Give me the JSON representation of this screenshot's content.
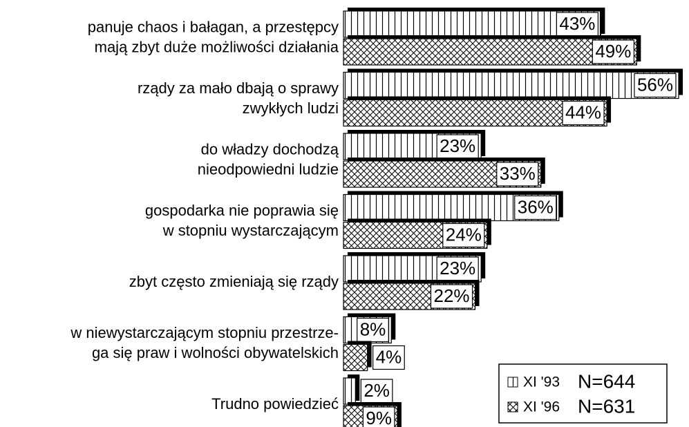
{
  "chart_data": {
    "type": "barh",
    "categories": [
      [
        "panuje chaos i bałagan, a przestępcy",
        "mają zbyt duże możliwości działania"
      ],
      [
        "rządy za mało dbają o sprawy",
        "zwykłych ludzi"
      ],
      [
        "do władzy dochodzą",
        "nieodpowiedni ludzie"
      ],
      [
        "gospodarka nie poprawia się",
        "w stopniu wystarczającym"
      ],
      [
        "zbyt często zmieniają się rządy"
      ],
      [
        "w niewystarczającym stopniu przestrze-",
        "ga się praw i wolności obywatelskich"
      ],
      [
        "Trudno powiedzieć"
      ]
    ],
    "series": [
      {
        "name": "XI '93",
        "n_label": "N=644",
        "pattern": "vertical",
        "color": "#000000",
        "values": [
          43,
          56,
          23,
          36,
          23,
          8,
          2
        ],
        "value_labels": [
          "43%",
          "56%",
          "23%",
          "36%",
          "23%",
          "8%",
          "2%"
        ]
      },
      {
        "name": "XI '96",
        "n_label": "N=631",
        "pattern": "crosshatch",
        "color": "#000000",
        "values": [
          49,
          44,
          33,
          24,
          22,
          4,
          9
        ],
        "value_labels": [
          "49%",
          "44%",
          "33%",
          "24%",
          "22%",
          "4%",
          "9%"
        ]
      }
    ],
    "legend": "bottom-right"
  }
}
